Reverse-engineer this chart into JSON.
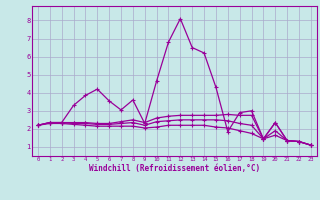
{
  "x": [
    0,
    1,
    2,
    3,
    4,
    5,
    6,
    7,
    8,
    9,
    10,
    11,
    12,
    13,
    14,
    15,
    16,
    17,
    18,
    19,
    20,
    21,
    22,
    23
  ],
  "line1": [
    2.2,
    2.35,
    2.35,
    3.3,
    3.85,
    4.2,
    3.55,
    3.05,
    3.6,
    2.3,
    4.65,
    6.8,
    8.1,
    6.5,
    6.2,
    4.3,
    1.85,
    2.9,
    3.0,
    1.45,
    2.35,
    1.35,
    1.3,
    1.1
  ],
  "line2": [
    2.2,
    2.35,
    2.35,
    2.35,
    2.35,
    2.3,
    2.3,
    2.4,
    2.5,
    2.35,
    2.6,
    2.7,
    2.75,
    2.75,
    2.75,
    2.75,
    2.8,
    2.75,
    2.75,
    1.45,
    2.35,
    1.35,
    1.3,
    1.1
  ],
  "line3": [
    2.2,
    2.35,
    2.35,
    2.3,
    2.3,
    2.25,
    2.25,
    2.3,
    2.35,
    2.2,
    2.4,
    2.45,
    2.5,
    2.5,
    2.5,
    2.5,
    2.45,
    2.3,
    2.2,
    1.45,
    1.9,
    1.35,
    1.3,
    1.1
  ],
  "line4": [
    2.2,
    2.3,
    2.3,
    2.25,
    2.2,
    2.15,
    2.15,
    2.15,
    2.15,
    2.05,
    2.1,
    2.2,
    2.2,
    2.2,
    2.2,
    2.1,
    2.05,
    1.9,
    1.75,
    1.45,
    1.65,
    1.35,
    1.3,
    1.1
  ],
  "color": "#990099",
  "bgcolor": "#c8e8e8",
  "grid_color": "#aaaacc",
  "xlabel": "Windchill (Refroidissement éolien,°C)",
  "ylim": [
    0.5,
    8.8
  ],
  "xlim": [
    -0.5,
    23.5
  ],
  "yticks": [
    1,
    2,
    3,
    4,
    5,
    6,
    7,
    8
  ],
  "xticks": [
    0,
    1,
    2,
    3,
    4,
    5,
    6,
    7,
    8,
    9,
    10,
    11,
    12,
    13,
    14,
    15,
    16,
    17,
    18,
    19,
    20,
    21,
    22,
    23
  ]
}
